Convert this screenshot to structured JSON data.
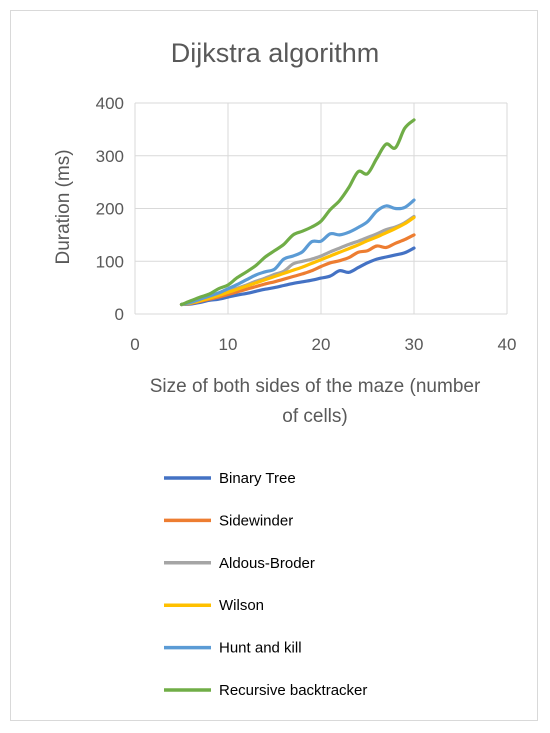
{
  "chart_data": {
    "type": "line",
    "title": "Dijkstra algorithm",
    "xlabel": [
      "Size of both sides of the maze (number",
      "of cells)"
    ],
    "ylabel": "Duration (ms)",
    "xlim": [
      0,
      40
    ],
    "ylim": [
      0,
      400
    ],
    "xticks": [
      "0",
      "10",
      "20",
      "30",
      "40"
    ],
    "yticks": [
      "0",
      "100",
      "200",
      "300",
      "400"
    ],
    "grid": true,
    "legend": "bottom",
    "x": [
      5,
      6,
      7,
      8,
      9,
      10,
      11,
      12,
      13,
      14,
      15,
      16,
      17,
      18,
      19,
      20,
      21,
      22,
      23,
      24,
      25,
      26,
      27,
      28,
      29,
      30
    ],
    "series": [
      {
        "name": "Binary Tree",
        "color": "#4472c4",
        "values": [
          18,
          19,
          22,
          26,
          28,
          32,
          36,
          39,
          43,
          47,
          50,
          54,
          58,
          61,
          64,
          68,
          72,
          82,
          79,
          88,
          97,
          104,
          108,
          112,
          116,
          125
        ]
      },
      {
        "name": "Sidewinder",
        "color": "#ed7d31",
        "values": [
          18,
          20,
          24,
          28,
          32,
          37,
          42,
          47,
          52,
          57,
          61,
          66,
          71,
          76,
          82,
          90,
          97,
          101,
          107,
          117,
          120,
          129,
          126,
          134,
          141,
          150
        ]
      },
      {
        "name": "Aldous-Broder",
        "color": "#a5a5a5",
        "values": [
          18,
          21,
          26,
          32,
          36,
          43,
          49,
          55,
          62,
          68,
          75,
          81,
          95,
          100,
          104,
          110,
          118,
          125,
          132,
          138,
          145,
          152,
          160,
          165,
          173,
          185
        ]
      },
      {
        "name": "Wilson",
        "color": "#ffc000",
        "values": [
          18,
          21,
          25,
          30,
          35,
          41,
          47,
          53,
          59,
          65,
          71,
          77,
          83,
          89,
          96,
          103,
          110,
          117,
          124,
          131,
          139,
          146,
          154,
          162,
          171,
          183
        ]
      },
      {
        "name": "Hunt and kill",
        "color": "#5b9bd5",
        "values": [
          18,
          22,
          28,
          34,
          40,
          48,
          56,
          65,
          74,
          80,
          85,
          104,
          110,
          118,
          137,
          138,
          152,
          150,
          155,
          164,
          175,
          195,
          205,
          200,
          202,
          216
        ]
      },
      {
        "name": "Recursive backtracker",
        "color": "#70ad47",
        "values": [
          18,
          25,
          32,
          38,
          48,
          55,
          69,
          80,
          92,
          108,
          120,
          132,
          150,
          157,
          165,
          176,
          198,
          215,
          240,
          270,
          266,
          295,
          322,
          315,
          352,
          368
        ]
      }
    ]
  }
}
